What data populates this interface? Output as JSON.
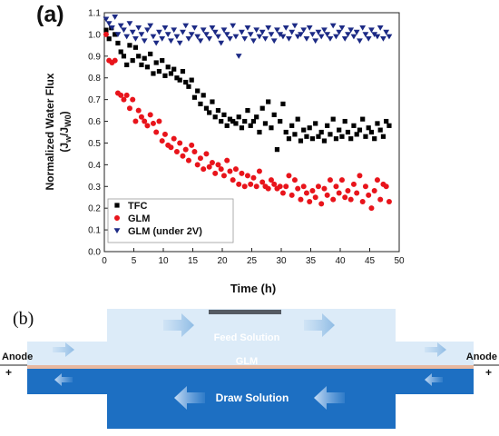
{
  "panel_a": {
    "label": "(a)"
  },
  "panel_b": {
    "label": "(b)"
  },
  "chart_data": {
    "type": "scatter",
    "xlabel": "Time (h)",
    "ylabel_line1": "Normalized Water Flux",
    "ylabel_line2": "(J",
    "ylabel_sub1": "w",
    "ylabel_mid": "/J",
    "ylabel_sub2": "W0",
    "ylabel_end": ")",
    "xlim": [
      0,
      50
    ],
    "ylim": [
      0.0,
      1.1
    ],
    "xticks": [
      0,
      5,
      10,
      15,
      20,
      25,
      30,
      35,
      40,
      45,
      50
    ],
    "yticks": [
      0.0,
      0.1,
      0.2,
      0.3,
      0.4,
      0.5,
      0.6,
      0.7,
      0.8,
      0.9,
      1.0,
      1.1
    ],
    "legend": "bottom-left",
    "series": [
      {
        "name": "TFC",
        "marker": "square",
        "color": "#000000",
        "x": [
          0.3,
          0.8,
          1.2,
          1.8,
          2.3,
          2.8,
          3.3,
          3.8,
          4.3,
          4.8,
          5.3,
          5.8,
          6.3,
          6.8,
          7.3,
          7.8,
          8.3,
          8.8,
          9.3,
          9.8,
          10.3,
          10.8,
          11.3,
          11.8,
          12.3,
          12.8,
          13.3,
          13.8,
          14.3,
          14.8,
          15.3,
          15.8,
          16.3,
          16.8,
          17.3,
          17.8,
          18.3,
          18.8,
          19.3,
          19.8,
          20.3,
          20.8,
          21.3,
          21.8,
          22.3,
          22.8,
          23.3,
          23.8,
          24.3,
          24.8,
          25.3,
          25.8,
          26.3,
          26.8,
          27.3,
          27.8,
          28.3,
          28.8,
          29.3,
          29.8,
          30.3,
          30.8,
          31.3,
          31.8,
          32.3,
          32.8,
          33.3,
          33.8,
          34.3,
          34.8,
          35.3,
          35.8,
          36.3,
          36.8,
          37.3,
          37.8,
          38.3,
          38.8,
          39.3,
          39.8,
          40.3,
          40.8,
          41.3,
          41.8,
          42.3,
          42.8,
          43.3,
          43.8,
          44.3,
          44.8,
          45.3,
          45.8,
          46.3,
          46.8,
          47.3,
          47.8,
          48.3
        ],
        "y": [
          1.02,
          0.98,
          1.03,
          1.0,
          0.96,
          0.92,
          0.9,
          0.86,
          0.95,
          0.88,
          0.94,
          0.9,
          0.86,
          0.89,
          0.85,
          0.91,
          0.82,
          0.87,
          0.83,
          0.88,
          0.81,
          0.85,
          0.82,
          0.84,
          0.8,
          0.79,
          0.83,
          0.78,
          0.76,
          0.79,
          0.71,
          0.74,
          0.68,
          0.72,
          0.66,
          0.64,
          0.69,
          0.62,
          0.65,
          0.6,
          0.63,
          0.58,
          0.61,
          0.6,
          0.59,
          0.62,
          0.57,
          0.6,
          0.65,
          0.58,
          0.6,
          0.62,
          0.55,
          0.66,
          0.59,
          0.69,
          0.57,
          0.63,
          0.47,
          0.6,
          0.68,
          0.55,
          0.52,
          0.58,
          0.54,
          0.61,
          0.51,
          0.56,
          0.53,
          0.57,
          0.52,
          0.59,
          0.53,
          0.55,
          0.51,
          0.58,
          0.54,
          0.61,
          0.52,
          0.56,
          0.53,
          0.6,
          0.55,
          0.52,
          0.58,
          0.54,
          0.56,
          0.61,
          0.53,
          0.57,
          0.55,
          0.52,
          0.59,
          0.56,
          0.53,
          0.6,
          0.58
        ]
      },
      {
        "name": "GLM",
        "marker": "circle",
        "color": "#e8141b",
        "x": [
          0.3,
          0.8,
          1.3,
          1.8,
          2.3,
          2.8,
          3.3,
          3.8,
          4.3,
          4.8,
          5.3,
          5.8,
          6.3,
          6.8,
          7.3,
          7.8,
          8.3,
          8.8,
          9.3,
          9.8,
          10.3,
          10.8,
          11.3,
          11.8,
          12.3,
          12.8,
          13.3,
          13.8,
          14.3,
          14.8,
          15.3,
          15.8,
          16.3,
          16.8,
          17.3,
          17.8,
          18.3,
          18.8,
          19.3,
          19.8,
          20.3,
          20.8,
          21.3,
          21.8,
          22.3,
          22.8,
          23.3,
          23.8,
          24.3,
          24.8,
          25.3,
          25.8,
          26.3,
          26.8,
          27.3,
          27.8,
          28.3,
          28.8,
          29.3,
          29.8,
          30.3,
          30.8,
          31.3,
          31.8,
          32.3,
          32.8,
          33.3,
          33.8,
          34.3,
          34.8,
          35.3,
          35.8,
          36.3,
          36.8,
          37.3,
          37.8,
          38.3,
          38.8,
          39.3,
          39.8,
          40.3,
          40.8,
          41.3,
          41.8,
          42.3,
          42.8,
          43.3,
          43.8,
          44.3,
          44.8,
          45.3,
          45.8,
          46.3,
          46.8,
          47.3,
          47.8,
          48.3
        ],
        "y": [
          1.0,
          0.88,
          0.87,
          0.88,
          0.73,
          0.72,
          0.7,
          0.72,
          0.66,
          0.7,
          0.6,
          0.65,
          0.62,
          0.6,
          0.58,
          0.63,
          0.59,
          0.55,
          0.6,
          0.51,
          0.54,
          0.49,
          0.48,
          0.52,
          0.46,
          0.5,
          0.44,
          0.47,
          0.42,
          0.49,
          0.46,
          0.4,
          0.43,
          0.38,
          0.45,
          0.39,
          0.41,
          0.36,
          0.4,
          0.38,
          0.35,
          0.42,
          0.37,
          0.33,
          0.38,
          0.31,
          0.36,
          0.3,
          0.35,
          0.31,
          0.34,
          0.3,
          0.37,
          0.32,
          0.3,
          0.29,
          0.33,
          0.31,
          0.29,
          0.3,
          0.27,
          0.3,
          0.35,
          0.26,
          0.33,
          0.29,
          0.24,
          0.3,
          0.27,
          0.23,
          0.28,
          0.25,
          0.3,
          0.22,
          0.29,
          0.26,
          0.33,
          0.24,
          0.3,
          0.27,
          0.33,
          0.25,
          0.28,
          0.24,
          0.31,
          0.27,
          0.35,
          0.23,
          0.3,
          0.26,
          0.2,
          0.28,
          0.33,
          0.24,
          0.31,
          0.3,
          0.23
        ]
      },
      {
        "name": "GLM (under 2V)",
        "marker": "triangle-down",
        "color": "#1c2a85",
        "x": [
          0.3,
          0.8,
          1.3,
          1.8,
          2.3,
          2.8,
          3.3,
          3.8,
          4.3,
          4.8,
          5.3,
          5.8,
          6.3,
          6.8,
          7.3,
          7.8,
          8.3,
          8.8,
          9.3,
          9.8,
          10.3,
          10.8,
          11.3,
          11.8,
          12.3,
          12.8,
          13.3,
          13.8,
          14.3,
          14.8,
          15.3,
          15.8,
          16.3,
          16.8,
          17.3,
          17.8,
          18.3,
          18.8,
          19.3,
          19.8,
          20.3,
          20.8,
          21.3,
          21.8,
          22.3,
          22.8,
          23.3,
          23.8,
          24.3,
          24.8,
          25.3,
          25.8,
          26.3,
          26.8,
          27.3,
          27.8,
          28.3,
          28.8,
          29.3,
          29.8,
          30.3,
          30.8,
          31.3,
          31.8,
          32.3,
          32.8,
          33.3,
          33.8,
          34.3,
          34.8,
          35.3,
          35.8,
          36.3,
          36.8,
          37.3,
          37.8,
          38.3,
          38.8,
          39.3,
          39.8,
          40.3,
          40.8,
          41.3,
          41.8,
          42.3,
          42.8,
          43.3,
          43.8,
          44.3,
          44.8,
          45.3,
          45.8,
          46.3,
          46.8,
          47.3,
          47.8,
          48.3
        ],
        "y": [
          1.07,
          1.05,
          1.03,
          1.08,
          1.0,
          1.04,
          1.02,
          0.99,
          1.05,
          1.01,
          0.98,
          1.03,
          1.0,
          0.97,
          1.02,
          1.04,
          0.99,
          0.96,
          1.01,
          0.98,
          1.03,
          1.0,
          0.97,
          1.02,
          0.99,
          0.96,
          1.01,
          1.04,
          0.98,
          1.0,
          1.03,
          0.99,
          0.97,
          1.02,
          1.0,
          0.98,
          1.03,
          1.01,
          0.99,
          0.96,
          1.02,
          1.0,
          0.98,
          1.04,
          0.99,
          0.9,
          1.01,
          0.98,
          1.03,
          1.0,
          0.97,
          1.02,
          0.99,
          1.01,
          0.98,
          1.03,
          1.0,
          0.97,
          1.02,
          1.0,
          0.99,
          1.03,
          0.98,
          1.01,
          1.04,
          0.99,
          1.0,
          1.02,
          0.98,
          1.03,
          1.0,
          0.97,
          1.01,
          0.99,
          1.02,
          1.0,
          0.98,
          1.04,
          0.99,
          1.01,
          1.03,
          0.98,
          1.0,
          1.02,
          0.99,
          1.01,
          0.97,
          1.03,
          1.0,
          0.98,
          1.02,
          1.0,
          0.99,
          1.03,
          0.98,
          1.01,
          0.99
        ]
      }
    ]
  },
  "diagram": {
    "feed_label": "Feed Solution",
    "membrane_label": "GLM",
    "draw_label": "Draw Solution",
    "anode_left": "Anode",
    "anode_right": "Anode",
    "plus_left": "+",
    "plus_right": "+",
    "colors": {
      "feed": "#dcebf8",
      "draw": "#1d6fc2",
      "membrane": "#e7b8a0",
      "electrode": "#555b63"
    }
  }
}
